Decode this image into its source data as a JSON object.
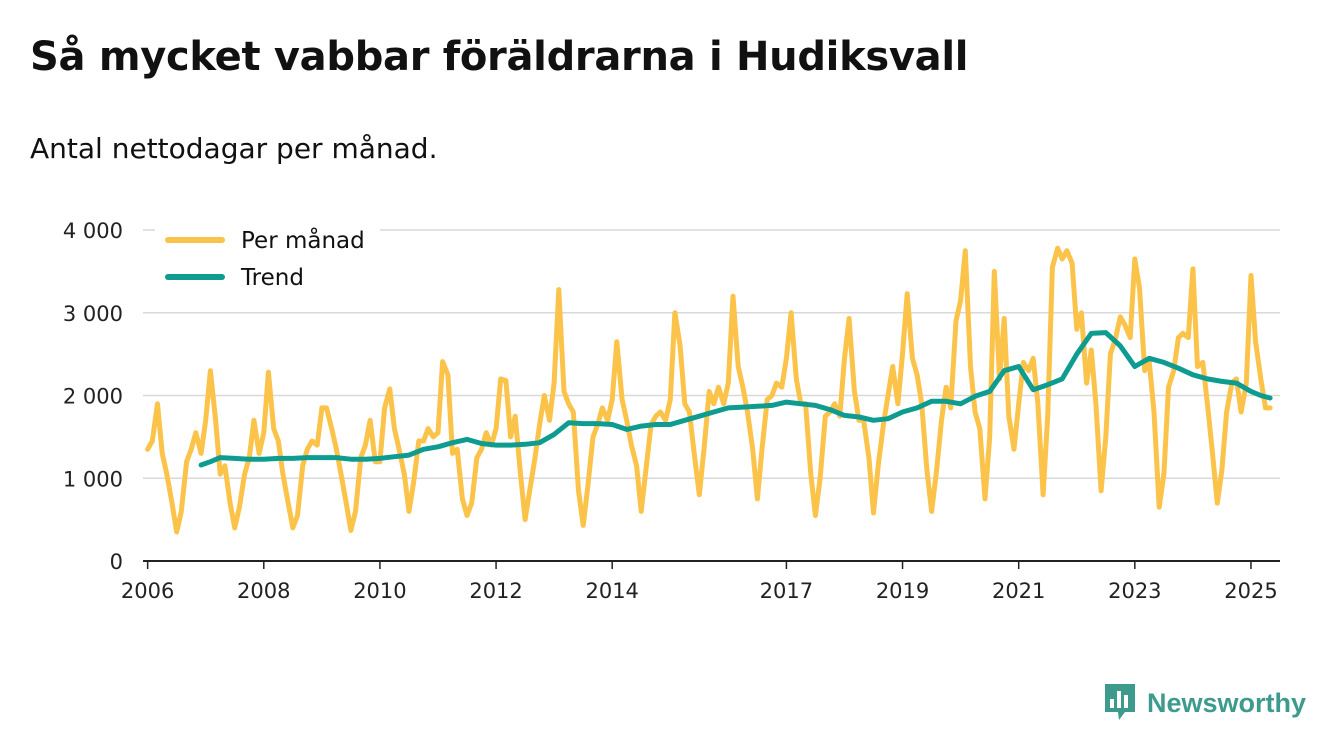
{
  "title": "Så mycket vabbar föräldrarna i Hudiksvall",
  "subtitle": "Antal nettodagar per månad.",
  "brand": {
    "name": "Newsworthy",
    "color": "#3d9b8e"
  },
  "colors": {
    "per_manad": "#fbc34a",
    "trend": "#0e9c91",
    "grid": "#d9d9d9",
    "axis": "#222222"
  },
  "chart_data": {
    "type": "line",
    "title": "Så mycket vabbar föräldrarna i Hudiksvall",
    "subtitle": "Antal nettodagar per månad.",
    "xlabel": "",
    "ylabel": "",
    "xlim": [
      2005.92,
      2025.5
    ],
    "ylim": [
      0,
      4000
    ],
    "yticks": [
      0,
      1000,
      2000,
      3000,
      4000
    ],
    "ytick_labels": [
      "0",
      "1 000",
      "2 000",
      "3 000",
      "4 000"
    ],
    "xticks": [
      2006,
      2008,
      2010,
      2012,
      2014,
      2017,
      2019,
      2021,
      2023,
      2025
    ],
    "xtick_labels": [
      "2006",
      "2008",
      "2010",
      "2012",
      "2014",
      "2017",
      "2019",
      "2021",
      "2023",
      "2025"
    ],
    "grid": true,
    "legend_position": "top-left",
    "series": [
      {
        "name": "Per månad",
        "color": "#fbc34a",
        "x": [
          2006.0,
          2006.08,
          2006.17,
          2006.25,
          2006.33,
          2006.42,
          2006.5,
          2006.58,
          2006.67,
          2006.75,
          2006.83,
          2006.92,
          2007.0,
          2007.08,
          2007.17,
          2007.25,
          2007.33,
          2007.42,
          2007.5,
          2007.58,
          2007.67,
          2007.75,
          2007.83,
          2007.92,
          2008.0,
          2008.08,
          2008.17,
          2008.25,
          2008.33,
          2008.42,
          2008.5,
          2008.58,
          2008.67,
          2008.75,
          2008.83,
          2008.92,
          2009.0,
          2009.08,
          2009.17,
          2009.25,
          2009.33,
          2009.42,
          2009.5,
          2009.58,
          2009.67,
          2009.75,
          2009.83,
          2009.92,
          2010.0,
          2010.08,
          2010.17,
          2010.25,
          2010.33,
          2010.42,
          2010.5,
          2010.58,
          2010.67,
          2010.75,
          2010.83,
          2010.92,
          2011.0,
          2011.08,
          2011.17,
          2011.25,
          2011.33,
          2011.42,
          2011.5,
          2011.58,
          2011.67,
          2011.75,
          2011.83,
          2011.92,
          2012.0,
          2012.08,
          2012.17,
          2012.25,
          2012.33,
          2012.42,
          2012.5,
          2012.58,
          2012.67,
          2012.75,
          2012.83,
          2012.92,
          2013.0,
          2013.08,
          2013.17,
          2013.25,
          2013.33,
          2013.42,
          2013.5,
          2013.58,
          2013.67,
          2013.75,
          2013.83,
          2013.92,
          2014.0,
          2014.08,
          2014.17,
          2014.25,
          2014.33,
          2014.42,
          2014.5,
          2014.58,
          2014.67,
          2014.75,
          2014.83,
          2014.92,
          2015.0,
          2015.08,
          2015.17,
          2015.25,
          2015.33,
          2015.42,
          2015.5,
          2015.58,
          2015.67,
          2015.75,
          2015.83,
          2015.92,
          2016.0,
          2016.08,
          2016.17,
          2016.25,
          2016.33,
          2016.42,
          2016.5,
          2016.58,
          2016.67,
          2016.75,
          2016.83,
          2016.92,
          2017.0,
          2017.08,
          2017.17,
          2017.25,
          2017.33,
          2017.42,
          2017.5,
          2017.58,
          2017.67,
          2017.75,
          2017.83,
          2017.92,
          2018.0,
          2018.08,
          2018.17,
          2018.25,
          2018.33,
          2018.42,
          2018.5,
          2018.58,
          2018.67,
          2018.75,
          2018.83,
          2018.92,
          2019.0,
          2019.08,
          2019.17,
          2019.25,
          2019.33,
          2019.42,
          2019.5,
          2019.58,
          2019.67,
          2019.75,
          2019.83,
          2019.92,
          2020.0,
          2020.08,
          2020.17,
          2020.25,
          2020.33,
          2020.42,
          2020.5,
          2020.58,
          2020.67,
          2020.75,
          2020.83,
          2020.92,
          2021.0,
          2021.08,
          2021.17,
          2021.25,
          2021.33,
          2021.42,
          2021.5,
          2021.58,
          2021.67,
          2021.75,
          2021.83,
          2021.92,
          2022.0,
          2022.08,
          2022.17,
          2022.25,
          2022.33,
          2022.42,
          2022.5,
          2022.58,
          2022.67,
          2022.75,
          2022.83,
          2022.92,
          2023.0,
          2023.08,
          2023.17,
          2023.25,
          2023.33,
          2023.42,
          2023.5,
          2023.58,
          2023.67,
          2023.75,
          2023.83,
          2023.92,
          2024.0,
          2024.08,
          2024.17,
          2024.25,
          2024.33,
          2024.42,
          2024.5,
          2024.58,
          2024.67,
          2024.75,
          2024.83,
          2024.92,
          2025.0,
          2025.08,
          2025.17,
          2025.25,
          2025.33
        ],
        "values": [
          1350,
          1450,
          1900,
          1300,
          1050,
          700,
          350,
          600,
          1200,
          1350,
          1550,
          1300,
          1700,
          2300,
          1700,
          1050,
          1150,
          700,
          400,
          650,
          1050,
          1250,
          1700,
          1300,
          1550,
          2280,
          1600,
          1450,
          1050,
          700,
          400,
          550,
          1150,
          1350,
          1450,
          1400,
          1850,
          1850,
          1600,
          1350,
          1050,
          700,
          370,
          600,
          1250,
          1400,
          1700,
          1200,
          1200,
          1850,
          2080,
          1600,
          1350,
          1050,
          600,
          950,
          1450,
          1450,
          1600,
          1500,
          1550,
          2410,
          2250,
          1300,
          1350,
          750,
          550,
          700,
          1250,
          1350,
          1550,
          1400,
          1600,
          2200,
          2180,
          1500,
          1750,
          1050,
          500,
          850,
          1250,
          1650,
          2000,
          1700,
          2150,
          3280,
          2050,
          1900,
          1800,
          850,
          430,
          900,
          1500,
          1650,
          1850,
          1700,
          1950,
          2650,
          1950,
          1700,
          1400,
          1150,
          600,
          1100,
          1650,
          1750,
          1800,
          1700,
          1950,
          3000,
          2600,
          1900,
          1800,
          1250,
          800,
          1350,
          2050,
          1900,
          2100,
          1900,
          2150,
          3200,
          2350,
          2100,
          1800,
          1350,
          750,
          1350,
          1950,
          2000,
          2150,
          2100,
          2450,
          3000,
          2200,
          1900,
          1900,
          1050,
          550,
          1000,
          1750,
          1800,
          1900,
          1750,
          2450,
          2930,
          2050,
          1700,
          1700,
          1250,
          580,
          1150,
          1650,
          2000,
          2350,
          1900,
          2500,
          3230,
          2450,
          2250,
          1900,
          1100,
          600,
          1050,
          1700,
          2100,
          1850,
          2900,
          3150,
          3750,
          2350,
          1800,
          1600,
          750,
          1500,
          3500,
          2200,
          2930,
          1750,
          1350,
          1900,
          2400,
          2300,
          2450,
          1900,
          800,
          1750,
          3550,
          3780,
          3650,
          3750,
          3600,
          2800,
          3000,
          2150,
          2550,
          1900,
          850,
          1500,
          2500,
          2700,
          2950,
          2850,
          2700,
          3650,
          3300,
          2300,
          2400,
          1800,
          650,
          1050,
          2100,
          2300,
          2700,
          2750,
          2700,
          3530,
          2350,
          2400,
          1900,
          1350,
          700,
          1100,
          1800,
          2150,
          2200,
          1800,
          2150,
          3450,
          2650,
          2200,
          1850,
          1850
        ]
      },
      {
        "name": "Trend",
        "color": "#0e9c91",
        "x": [
          2006.92,
          2007.08,
          2007.25,
          2007.5,
          2007.75,
          2008.0,
          2008.25,
          2008.5,
          2008.75,
          2009.0,
          2009.25,
          2009.5,
          2009.75,
          2010.0,
          2010.25,
          2010.5,
          2010.75,
          2011.0,
          2011.25,
          2011.5,
          2011.75,
          2012.0,
          2012.25,
          2012.5,
          2012.75,
          2013.0,
          2013.25,
          2013.5,
          2013.75,
          2014.0,
          2014.25,
          2014.5,
          2014.75,
          2015.0,
          2015.25,
          2015.5,
          2015.75,
          2016.0,
          2016.25,
          2016.5,
          2016.75,
          2017.0,
          2017.25,
          2017.5,
          2017.75,
          2018.0,
          2018.25,
          2018.5,
          2018.75,
          2019.0,
          2019.25,
          2019.5,
          2019.75,
          2020.0,
          2020.25,
          2020.5,
          2020.75,
          2021.0,
          2021.25,
          2021.5,
          2021.75,
          2022.0,
          2022.25,
          2022.5,
          2022.75,
          2023.0,
          2023.25,
          2023.5,
          2023.75,
          2024.0,
          2024.25,
          2024.5,
          2024.75,
          2025.0,
          2025.17,
          2025.33
        ],
        "values": [
          1160,
          1200,
          1250,
          1240,
          1230,
          1230,
          1240,
          1240,
          1250,
          1250,
          1250,
          1230,
          1230,
          1240,
          1260,
          1280,
          1350,
          1380,
          1430,
          1470,
          1420,
          1400,
          1400,
          1410,
          1430,
          1530,
          1670,
          1660,
          1660,
          1650,
          1590,
          1630,
          1650,
          1650,
          1700,
          1750,
          1800,
          1850,
          1860,
          1870,
          1880,
          1920,
          1900,
          1880,
          1830,
          1760,
          1740,
          1700,
          1720,
          1800,
          1850,
          1930,
          1930,
          1900,
          1990,
          2050,
          2300,
          2350,
          2070,
          2130,
          2200,
          2500,
          2750,
          2760,
          2600,
          2350,
          2450,
          2400,
          2330,
          2250,
          2200,
          2170,
          2150,
          2050,
          2000,
          1970
        ]
      }
    ]
  }
}
